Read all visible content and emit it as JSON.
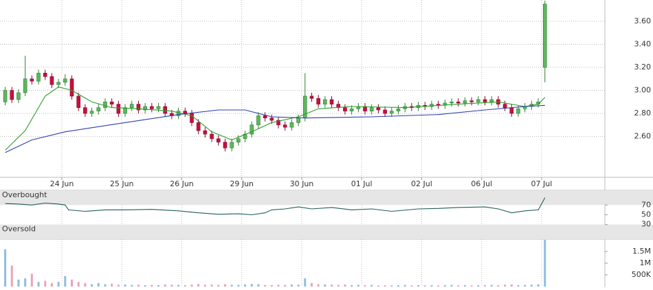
{
  "chart_data": [
    {
      "type": "candlestick",
      "xlim": [
        -0.78,
        90.0
      ],
      "xticks": [
        {
          "value": 8.5,
          "label": "24 Jun"
        },
        {
          "value": 17.5,
          "label": "25 Jun"
        },
        {
          "value": 26.5,
          "label": "26 Jun"
        },
        {
          "value": 35.5,
          "label": "29 Jun"
        },
        {
          "value": 44.5,
          "label": "30 Jun"
        },
        {
          "value": 53.5,
          "label": "01 Jul"
        },
        {
          "value": 62.5,
          "label": "02 Jul"
        },
        {
          "value": 71.5,
          "label": "06 Jul"
        },
        {
          "value": 80.5,
          "label": "07 Jul"
        }
      ],
      "ylim": [
        2.245,
        3.785
      ],
      "yticks": [
        {
          "value": 2.6,
          "label": "2.60"
        },
        {
          "value": 2.8,
          "label": "2.80"
        },
        {
          "value": 3.0,
          "label": "3.00"
        },
        {
          "value": 3.2,
          "label": "3.20"
        },
        {
          "value": 3.4,
          "label": "3.40"
        },
        {
          "value": 3.6,
          "label": "3.60"
        }
      ],
      "grid": true,
      "up_color": "#5cb85c",
      "up_edge": "#2e7d32",
      "down_color": "#c8103c",
      "down_edge": "#8a0028",
      "open": [
        2.9,
        3.0,
        2.92,
        2.98,
        3.1,
        3.08,
        3.15,
        3.12,
        3.05,
        3.07,
        3.1,
        2.95,
        2.85,
        2.8,
        2.82,
        2.85,
        2.9,
        2.88,
        2.8,
        2.85,
        2.88,
        2.83,
        2.86,
        2.84,
        2.86,
        2.8,
        2.78,
        2.82,
        2.8,
        2.72,
        2.65,
        2.62,
        2.58,
        2.55,
        2.5,
        2.55,
        2.58,
        2.62,
        2.7,
        2.78,
        2.76,
        2.74,
        2.7,
        2.68,
        2.72,
        2.76,
        2.95,
        2.93,
        2.88,
        2.92,
        2.88,
        2.85,
        2.82,
        2.84,
        2.86,
        2.82,
        2.85,
        2.83,
        2.8,
        2.82,
        2.84,
        2.86,
        2.85,
        2.87,
        2.86,
        2.88,
        2.87,
        2.89,
        2.9,
        2.89,
        2.91,
        2.9,
        2.92,
        2.9,
        2.92,
        2.88,
        2.85,
        2.8,
        2.84,
        2.86,
        2.88,
        3.2
      ],
      "high": [
        3.03,
        3.03,
        3.01,
        3.3,
        3.13,
        3.18,
        3.18,
        3.15,
        3.1,
        3.14,
        3.13,
        2.98,
        2.88,
        2.85,
        2.88,
        2.93,
        2.93,
        2.91,
        2.88,
        2.91,
        2.91,
        2.89,
        2.89,
        2.89,
        2.89,
        2.83,
        2.85,
        2.85,
        2.83,
        2.75,
        2.68,
        2.65,
        2.61,
        2.58,
        2.58,
        2.61,
        2.65,
        2.73,
        2.81,
        2.81,
        2.79,
        2.77,
        2.73,
        2.75,
        2.79,
        3.15,
        2.98,
        2.96,
        2.95,
        2.95,
        2.91,
        2.88,
        2.87,
        2.89,
        2.89,
        2.88,
        2.88,
        2.86,
        2.85,
        2.87,
        2.89,
        2.89,
        2.9,
        2.9,
        2.91,
        2.91,
        2.92,
        2.93,
        2.93,
        2.94,
        2.94,
        2.95,
        2.95,
        2.95,
        2.95,
        2.91,
        2.88,
        2.87,
        2.89,
        2.91,
        2.93,
        3.78
      ],
      "low": [
        2.87,
        2.89,
        2.89,
        2.95,
        3.05,
        3.05,
        3.09,
        3.02,
        3.02,
        3.04,
        2.92,
        2.82,
        2.77,
        2.77,
        2.79,
        2.82,
        2.85,
        2.77,
        2.77,
        2.82,
        2.8,
        2.8,
        2.81,
        2.81,
        2.77,
        2.75,
        2.75,
        2.77,
        2.69,
        2.62,
        2.59,
        2.55,
        2.52,
        2.47,
        2.47,
        2.52,
        2.55,
        2.59,
        2.67,
        2.73,
        2.71,
        2.67,
        2.65,
        2.65,
        2.69,
        2.73,
        2.9,
        2.85,
        2.85,
        2.85,
        2.82,
        2.79,
        2.79,
        2.81,
        2.79,
        2.79,
        2.8,
        2.77,
        2.77,
        2.79,
        2.81,
        2.82,
        2.82,
        2.83,
        2.83,
        2.84,
        2.84,
        2.86,
        2.86,
        2.86,
        2.87,
        2.87,
        2.87,
        2.87,
        2.85,
        2.82,
        2.77,
        2.77,
        2.81,
        2.83,
        2.85,
        3.07
      ],
      "close": [
        3.0,
        2.92,
        2.98,
        3.1,
        3.08,
        3.15,
        3.12,
        3.05,
        3.07,
        3.1,
        2.95,
        2.85,
        2.8,
        2.82,
        2.85,
        2.9,
        2.88,
        2.8,
        2.85,
        2.88,
        2.83,
        2.86,
        2.84,
        2.86,
        2.8,
        2.78,
        2.82,
        2.8,
        2.72,
        2.65,
        2.62,
        2.58,
        2.55,
        2.5,
        2.55,
        2.58,
        2.62,
        2.7,
        2.78,
        2.76,
        2.74,
        2.7,
        2.68,
        2.72,
        2.76,
        2.95,
        2.93,
        2.88,
        2.92,
        2.88,
        2.85,
        2.82,
        2.84,
        2.86,
        2.82,
        2.85,
        2.83,
        2.8,
        2.82,
        2.84,
        2.86,
        2.85,
        2.87,
        2.86,
        2.88,
        2.87,
        2.89,
        2.9,
        2.89,
        2.91,
        2.9,
        2.92,
        2.9,
        2.92,
        2.88,
        2.85,
        2.8,
        2.84,
        2.86,
        2.88,
        2.9,
        3.75
      ],
      "series": [
        {
          "color": "#2a9d2a",
          "x": [
            0,
            3,
            6,
            8,
            10,
            13,
            16,
            20,
            25,
            28,
            31,
            34,
            37,
            40,
            44,
            47,
            52,
            60,
            68,
            74,
            78,
            80,
            81
          ],
          "values": [
            2.48,
            2.65,
            2.95,
            3.03,
            3.0,
            2.9,
            2.85,
            2.84,
            2.82,
            2.78,
            2.64,
            2.57,
            2.64,
            2.72,
            2.77,
            2.84,
            2.86,
            2.85,
            2.88,
            2.9,
            2.86,
            2.88,
            2.94
          ]
        },
        {
          "color": "#2b3ea8",
          "x": [
            0,
            4,
            9,
            18,
            26,
            32,
            36,
            40,
            45,
            55,
            65,
            72,
            78,
            81
          ],
          "values": [
            2.46,
            2.57,
            2.64,
            2.72,
            2.79,
            2.83,
            2.83,
            2.77,
            2.76,
            2.77,
            2.79,
            2.83,
            2.86,
            2.87
          ]
        }
      ]
    },
    {
      "type": "line",
      "ylim": [
        0,
        100
      ],
      "yticks": [
        30,
        50,
        70
      ],
      "bands": [
        {
          "label": "Overbought",
          "from": 70,
          "to": 100
        },
        {
          "label": "Oversold",
          "from": 0,
          "to": 30
        }
      ],
      "series": [
        {
          "color": "#1f5a5a",
          "x": [
            0,
            2,
            4,
            6,
            8,
            9,
            9.5,
            12,
            15,
            18,
            22,
            26,
            29,
            32,
            35,
            37,
            39,
            40,
            42,
            44,
            46,
            49,
            52,
            55,
            58,
            62,
            65,
            68,
            72,
            74,
            76,
            78,
            80,
            81
          ],
          "values": [
            73,
            72,
            70,
            74,
            72,
            70,
            60,
            57,
            60,
            60,
            61,
            58,
            54,
            51,
            52,
            50,
            54,
            60,
            62,
            66,
            62,
            65,
            60,
            62,
            57,
            62,
            63,
            65,
            66,
            62,
            54,
            58,
            60,
            85
          ]
        }
      ]
    },
    {
      "type": "bar",
      "ylim": [
        0,
        2030000
      ],
      "yticks": [
        {
          "value": 500000,
          "label": "500K"
        },
        {
          "value": 1000000,
          "label": "1M"
        },
        {
          "value": 1500000,
          "label": "1.5M"
        }
      ],
      "up_color": "#8fbde0",
      "down_color": "#eba3b8",
      "values": [
        1600000,
        900000,
        300000,
        350000,
        550000,
        200000,
        250000,
        150000,
        200000,
        450000,
        300000,
        200000,
        150000,
        100000,
        150000,
        100000,
        120000,
        80000,
        90000,
        70000,
        80000,
        60000,
        70000,
        60000,
        90000,
        80000,
        70000,
        60000,
        90000,
        110000,
        80000,
        90000,
        70000,
        100000,
        80000,
        70000,
        90000,
        110000,
        100000,
        70000,
        60000,
        80000,
        70000,
        90000,
        80000,
        350000,
        150000,
        100000,
        90000,
        80000,
        70000,
        90000,
        60000,
        70000,
        60000,
        70000,
        50000,
        60000,
        50000,
        60000,
        70000,
        50000,
        60000,
        50000,
        60000,
        50000,
        60000,
        70000,
        50000,
        60000,
        50000,
        60000,
        60000,
        70000,
        60000,
        80000,
        90000,
        60000,
        70000,
        80000,
        100000,
        2000000
      ]
    }
  ]
}
